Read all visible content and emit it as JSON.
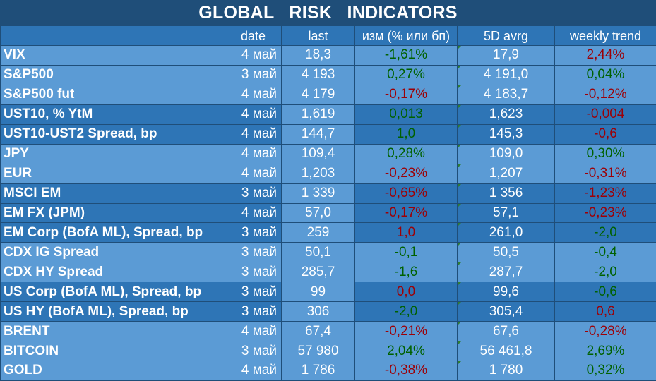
{
  "title": "GLOBAL   RISK   INDICATORS",
  "headers": [
    "",
    "date",
    "last",
    "изм (% или бп)",
    "5D avrg",
    "weekly trend"
  ],
  "rows": [
    {
      "name": "VIX",
      "date": "4 май",
      "last": "18,3",
      "change": "-1,61%",
      "change_sign": "pos",
      "avg": "17,9",
      "trend": "2,44%",
      "trend_sign": "neg",
      "group": "g1"
    },
    {
      "name": "S&P500",
      "date": "3 май",
      "last": "4 193",
      "change": "0,27%",
      "change_sign": "pos",
      "avg": "4 191,0",
      "trend": "0,04%",
      "trend_sign": "pos",
      "group": "g1"
    },
    {
      "name": "S&P500 fut",
      "date": "4 май",
      "last": "4 179",
      "change": "-0,17%",
      "change_sign": "neg",
      "avg": "4 183,7",
      "trend": "-0,12%",
      "trend_sign": "neg",
      "group": "g1"
    },
    {
      "name": "UST10, % YtM",
      "date": "4 май",
      "last": "1,619",
      "change": "0,013",
      "change_sign": "pos",
      "avg": "1,623",
      "trend": "-0,004",
      "trend_sign": "neg",
      "group": "g2"
    },
    {
      "name": "UST10-UST2 Spread, bp",
      "date": "4 май",
      "last": "144,7",
      "change": "1,0",
      "change_sign": "pos",
      "avg": "145,3",
      "trend": "-0,6",
      "trend_sign": "neg",
      "group": "g2"
    },
    {
      "name": "JPY",
      "date": "4 май",
      "last": "109,4",
      "change": "0,28%",
      "change_sign": "pos",
      "avg": "109,0",
      "trend": "0,30%",
      "trend_sign": "pos",
      "group": "g1"
    },
    {
      "name": "EUR",
      "date": "4 май",
      "last": "1,203",
      "change": "-0,23%",
      "change_sign": "neg",
      "avg": "1,207",
      "trend": "-0,31%",
      "trend_sign": "neg",
      "group": "g1"
    },
    {
      "name": "MSCI EM",
      "date": "3 май",
      "last": "1 339",
      "change": "-0,65%",
      "change_sign": "neg",
      "avg": "1 356",
      "trend": "-1,23%",
      "trend_sign": "neg",
      "group": "g2"
    },
    {
      "name": "EM FX (JPM)",
      "date": "4 май",
      "last": "57,0",
      "change": "-0,17%",
      "change_sign": "neg",
      "avg": "57,1",
      "trend": "-0,23%",
      "trend_sign": "neg",
      "group": "g2"
    },
    {
      "name": "EM Corp (BofA ML), Spread, bp",
      "date": "3 май",
      "last": "259",
      "change": "1,0",
      "change_sign": "neg",
      "avg": "261,0",
      "trend": "-2,0",
      "trend_sign": "pos",
      "group": "g2"
    },
    {
      "name": "CDX IG Spread",
      "date": "3 май",
      "last": "50,1",
      "change": "-0,1",
      "change_sign": "pos",
      "avg": "50,5",
      "trend": "-0,4",
      "trend_sign": "pos",
      "group": "g1"
    },
    {
      "name": "CDX HY Spread",
      "date": "3 май",
      "last": "285,7",
      "change": "-1,6",
      "change_sign": "pos",
      "avg": "287,7",
      "trend": "-2,0",
      "trend_sign": "pos",
      "group": "g1"
    },
    {
      "name": "US Corp (BofA ML), Spread, bp",
      "date": "3 май",
      "last": "99",
      "change": "0,0",
      "change_sign": "neg",
      "avg": "99,6",
      "trend": "-0,6",
      "trend_sign": "pos",
      "group": "g2"
    },
    {
      "name": "US HY (BofA ML), Spread, bp",
      "date": "3 май",
      "last": "306",
      "change": "-2,0",
      "change_sign": "pos",
      "avg": "305,4",
      "trend": "0,6",
      "trend_sign": "neg",
      "group": "g2"
    },
    {
      "name": "BRENT",
      "date": "4 май",
      "last": "67,4",
      "change": "-0,21%",
      "change_sign": "neg",
      "avg": "67,6",
      "trend": "-0,28%",
      "trend_sign": "neg",
      "group": "g1"
    },
    {
      "name": "BITCOIN",
      "date": "3 май",
      "last": "57 980",
      "change": "2,04%",
      "change_sign": "pos",
      "avg": "56 461,8",
      "trend": "2,69%",
      "trend_sign": "pos",
      "group": "g1"
    },
    {
      "name": "GOLD",
      "date": "4 май",
      "last": "1 786",
      "change": "-0,38%",
      "change_sign": "neg",
      "avg": "1 780",
      "trend": "0,32%",
      "trend_sign": "pos",
      "group": "g1"
    }
  ]
}
